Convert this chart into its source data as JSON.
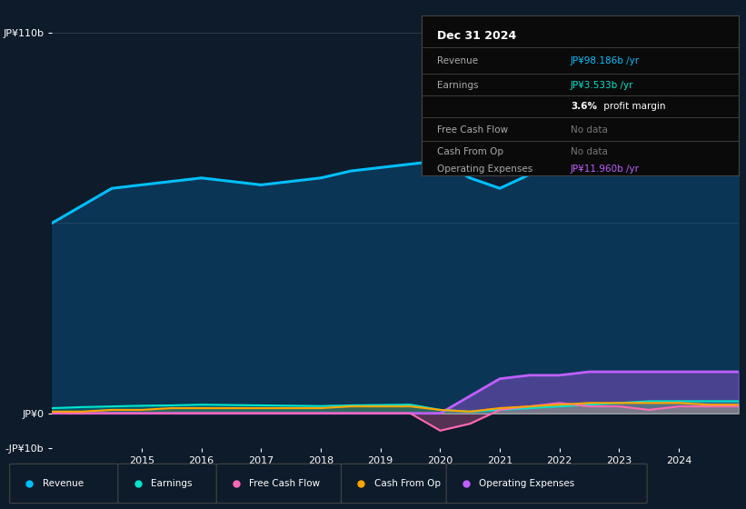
{
  "bg_color": "#0d1b2a",
  "plot_bg_color": "#0d1b2a",
  "years": [
    2013.5,
    2014,
    2014.5,
    2015,
    2015.5,
    2016,
    2016.5,
    2017,
    2017.5,
    2018,
    2018.5,
    2019,
    2019.5,
    2020,
    2020.5,
    2021,
    2021.5,
    2022,
    2022.5,
    2023,
    2023.5,
    2024,
    2024.5,
    2025
  ],
  "revenue": [
    55,
    60,
    65,
    66,
    67,
    68,
    67,
    66,
    67,
    68,
    70,
    71,
    72,
    73,
    68,
    65,
    69,
    72,
    80,
    95,
    105,
    95,
    98,
    98
  ],
  "earnings": [
    1.5,
    1.8,
    2.0,
    2.2,
    2.3,
    2.5,
    2.4,
    2.3,
    2.2,
    2.1,
    2.3,
    2.4,
    2.5,
    1.0,
    0.5,
    1.0,
    1.5,
    2.0,
    2.5,
    3.0,
    3.5,
    3.5,
    3.5,
    3.5
  ],
  "free_cash_flow": [
    0,
    0,
    0,
    0,
    0,
    0,
    0,
    0,
    0,
    0,
    0,
    0,
    0,
    -5,
    -3,
    1,
    2,
    3,
    2,
    2,
    1,
    2,
    2,
    2
  ],
  "cash_from_op": [
    0.5,
    0.5,
    1.0,
    1.0,
    1.5,
    1.5,
    1.5,
    1.5,
    1.5,
    1.5,
    2.0,
    2.0,
    2.0,
    1.0,
    0.5,
    1.5,
    2.0,
    2.5,
    3.0,
    3.0,
    3.0,
    3.0,
    2.5,
    2.5
  ],
  "operating_expenses": [
    0,
    0,
    0,
    0,
    0,
    0,
    0,
    0,
    0,
    0,
    0,
    0,
    0,
    0,
    5,
    10,
    11,
    11,
    12,
    12,
    12,
    12,
    12,
    12
  ],
  "revenue_color": "#00bfff",
  "earnings_color": "#00e5cc",
  "free_cash_flow_color": "#ff69b4",
  "cash_from_op_color": "#ffa500",
  "operating_expenses_color": "#bf5fff",
  "fill_revenue_color": "#0a3a5c",
  "ylim": [
    -10,
    115
  ],
  "yticks": [
    -10,
    0,
    110
  ],
  "ytick_labels": [
    "-JP¥10b",
    "JP¥0",
    "JP¥110b"
  ],
  "xticks": [
    2015,
    2016,
    2017,
    2018,
    2019,
    2020,
    2021,
    2022,
    2023,
    2024
  ],
  "title_date": "Dec 31 2024",
  "info_revenue": "JP¥98.186b /yr",
  "info_earnings": "JP¥3.533b /yr",
  "info_margin_pct": "3.6%",
  "info_margin_text": " profit margin",
  "info_fcf": "No data",
  "info_cashop": "No data",
  "info_opex": "JP¥11.960b /yr",
  "legend_labels": [
    "Revenue",
    "Earnings",
    "Free Cash Flow",
    "Cash From Op",
    "Operating Expenses"
  ],
  "legend_colors": [
    "#00bfff",
    "#00e5cc",
    "#ff69b4",
    "#ffa500",
    "#bf5fff"
  ]
}
